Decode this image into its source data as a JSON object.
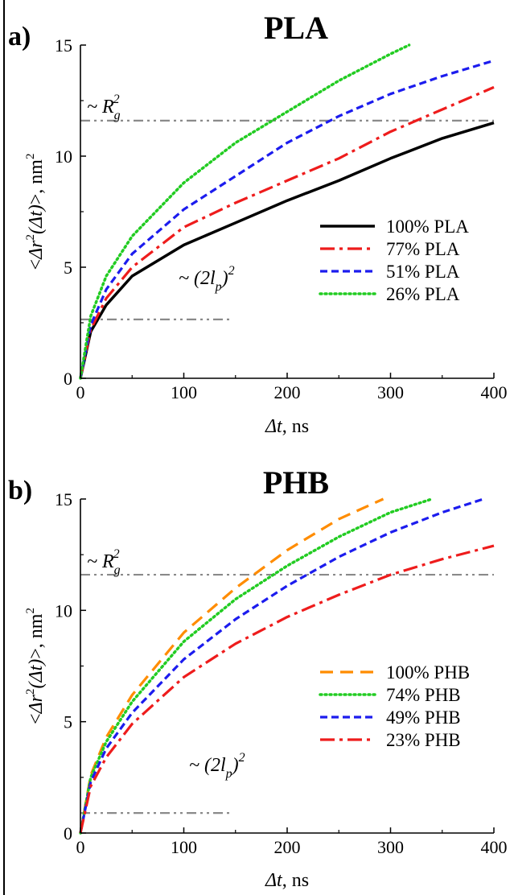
{
  "chart_data": [
    {
      "type": "line",
      "panel_letter": "a)",
      "title": "PLA",
      "xlabel_main": "Δt",
      "xlabel_unit": ", ns",
      "ylabel_open": "<",
      "ylabel_delta": "Δr",
      "ylabel_sup": "2",
      "ylabel_arg": "(Δt)",
      "ylabel_close": ">, nm",
      "ylabel_unit_sup": "2",
      "xlim": [
        0,
        400
      ],
      "ylim": [
        0,
        15
      ],
      "xticks": [
        "0",
        "100",
        "200",
        "300",
        "400"
      ],
      "yticks": [
        "0",
        "5",
        "10",
        "15"
      ],
      "grid": false,
      "legend_position": "right",
      "reference_lines": [
        {
          "label_prefix": "~ R",
          "label_sub": "g",
          "label_sup": "2",
          "y": 11.6,
          "x_range": [
            0,
            400
          ]
        },
        {
          "label_prefix": "~ (2l",
          "label_sub": "p",
          "label_mid": ")",
          "label_sup": "2",
          "y": 2.65,
          "x_range": [
            0,
            145
          ]
        }
      ],
      "series": [
        {
          "name": "100% PLA",
          "color": "#000000",
          "style": "solid",
          "x": [
            0,
            10,
            25,
            50,
            100,
            150,
            200,
            250,
            300,
            350,
            400
          ],
          "y": [
            0,
            2.1,
            3.3,
            4.6,
            6.0,
            7.0,
            8.0,
            8.9,
            9.9,
            10.8,
            11.5
          ]
        },
        {
          "name": "77% PLA",
          "color": "#ee1c1c",
          "style": "dashdot",
          "x": [
            0,
            10,
            25,
            50,
            100,
            150,
            200,
            250,
            300,
            350,
            400
          ],
          "y": [
            0,
            2.2,
            3.6,
            5.0,
            6.8,
            7.9,
            8.9,
            9.9,
            11.1,
            12.1,
            13.1
          ]
        },
        {
          "name": "51% PLA",
          "color": "#1c1cee",
          "style": "dash",
          "x": [
            0,
            10,
            25,
            50,
            100,
            150,
            200,
            250,
            300,
            350,
            400
          ],
          "y": [
            0,
            2.4,
            4.0,
            5.6,
            7.6,
            9.1,
            10.6,
            11.8,
            12.8,
            13.6,
            14.3
          ]
        },
        {
          "name": "26% PLA",
          "color": "#22cc22",
          "style": "dot",
          "x": [
            0,
            10,
            25,
            50,
            100,
            150,
            200,
            250,
            300,
            318
          ],
          "y": [
            0,
            2.8,
            4.6,
            6.4,
            8.8,
            10.6,
            12.0,
            13.4,
            14.6,
            15.0
          ]
        }
      ]
    },
    {
      "type": "line",
      "panel_letter": "b)",
      "title": "PHB",
      "xlabel_main": "Δt",
      "xlabel_unit": ", ns",
      "ylabel_open": "<",
      "ylabel_delta": "Δr",
      "ylabel_sup": "2",
      "ylabel_arg": "(Δt)",
      "ylabel_close": ">, nm",
      "ylabel_unit_sup": "2",
      "xlim": [
        0,
        400
      ],
      "ylim": [
        0,
        15
      ],
      "xticks": [
        "0",
        "100",
        "200",
        "300",
        "400"
      ],
      "yticks": [
        "0",
        "5",
        "10",
        "15"
      ],
      "grid": false,
      "legend_position": "right",
      "reference_lines": [
        {
          "label_prefix": "~ R",
          "label_sub": "g",
          "label_sup": "2",
          "y": 11.6,
          "x_range": [
            0,
            400
          ]
        },
        {
          "label_prefix": "~ (2l",
          "label_sub": "p",
          "label_mid": ")",
          "label_sup": "2",
          "y": 0.9,
          "x_range": [
            0,
            145
          ]
        }
      ],
      "series": [
        {
          "name": "100% PHB",
          "color": "#ff8c00",
          "style": "longdash",
          "x": [
            0,
            10,
            25,
            50,
            100,
            150,
            200,
            250,
            293
          ],
          "y": [
            0,
            2.6,
            4.3,
            6.2,
            9.0,
            11.0,
            12.7,
            14.1,
            15.0
          ]
        },
        {
          "name": "74% PHB",
          "color": "#22cc22",
          "style": "dot",
          "x": [
            0,
            10,
            25,
            50,
            100,
            150,
            200,
            250,
            300,
            340
          ],
          "y": [
            0,
            2.5,
            4.1,
            5.9,
            8.6,
            10.5,
            12.0,
            13.3,
            14.4,
            15.0
          ]
        },
        {
          "name": "49% PHB",
          "color": "#1c1cee",
          "style": "dash",
          "x": [
            0,
            10,
            25,
            50,
            100,
            150,
            200,
            250,
            300,
            350,
            390
          ],
          "y": [
            0,
            2.3,
            3.8,
            5.4,
            7.8,
            9.6,
            11.1,
            12.4,
            13.5,
            14.4,
            15.0
          ]
        },
        {
          "name": "23% PHB",
          "color": "#ee1c1c",
          "style": "dashdot",
          "x": [
            0,
            10,
            25,
            50,
            100,
            150,
            200,
            250,
            300,
            350,
            400
          ],
          "y": [
            0,
            2.1,
            3.4,
            4.9,
            7.0,
            8.5,
            9.7,
            10.7,
            11.6,
            12.3,
            12.9
          ]
        }
      ]
    }
  ]
}
